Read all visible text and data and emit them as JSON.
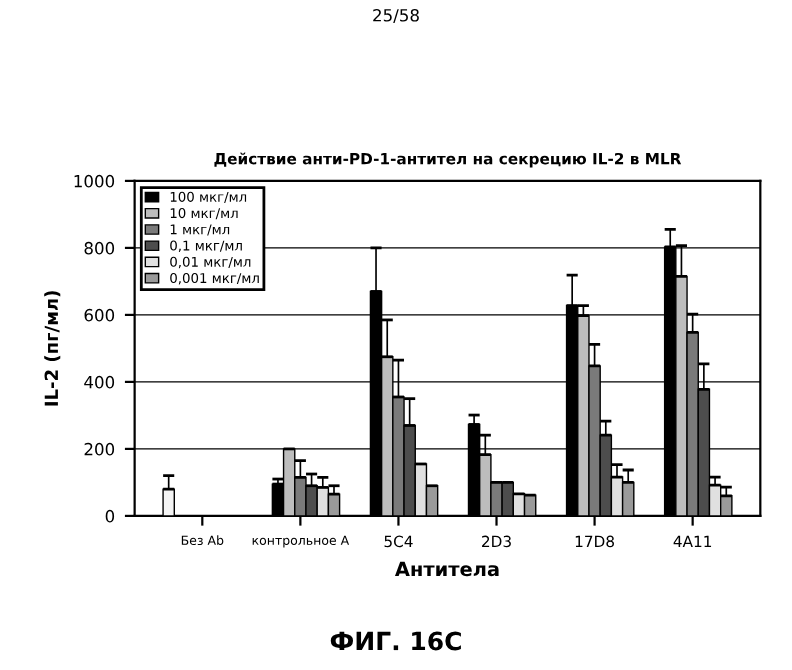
{
  "chart_data": {
    "type": "bar",
    "title": "Действие анти-PD-1-антител на секрецию IL-2 в MLR",
    "xlabel": "Антитела",
    "ylabel": "IL-2 (пг/мл)",
    "annotations": [
      "25/58",
      "ФИГ. 16C"
    ],
    "categories": [
      "Без Ab",
      "контрольное A",
      "5C4",
      "2D3",
      "17D8",
      "4A11"
    ],
    "series": [
      {
        "color": "#f4f4f4",
        "values": [
          80,
          null,
          null,
          null,
          null,
          null
        ],
        "errors": [
          40,
          null,
          null,
          null,
          null,
          null
        ]
      },
      {
        "name": "100 мкг/мл",
        "color": "#000000",
        "values": [
          null,
          95,
          670,
          273,
          628,
          803
        ],
        "errors": [
          null,
          15,
          130,
          28,
          91,
          52
        ]
      },
      {
        "name": "10 мкг/мл",
        "color": "#bdbdbd",
        "values": [
          null,
          200,
          475,
          183,
          598,
          715
        ],
        "errors": [
          null,
          null,
          110,
          58,
          30,
          92
        ]
      },
      {
        "name": "1 мкг/мл",
        "color": "#7a7a7a",
        "values": [
          null,
          115,
          355,
          100,
          448,
          548
        ],
        "errors": [
          null,
          50,
          110,
          null,
          64,
          54
        ]
      },
      {
        "name": "0,1 мкг/мл",
        "color": "#4d4d4d",
        "values": [
          null,
          90,
          270,
          100,
          241,
          378
        ],
        "errors": [
          null,
          35,
          80,
          null,
          42,
          76
        ]
      },
      {
        "name": "0,01 мкг/мл",
        "color": "#e0e0e0",
        "values": [
          null,
          85,
          155,
          66,
          116,
          92
        ],
        "errors": [
          null,
          30,
          null,
          null,
          37,
          24
        ]
      },
      {
        "name": "0,001 мкг/мл",
        "color": "#9a9a9a",
        "values": [
          null,
          65,
          90,
          62,
          100,
          60
        ],
        "errors": [
          null,
          25,
          null,
          null,
          37,
          26
        ]
      }
    ],
    "ylim": [
      0,
      1000
    ],
    "yticks": [
      0,
      200,
      400,
      600,
      800,
      1000
    ],
    "grid": "y",
    "legend": "top left"
  }
}
